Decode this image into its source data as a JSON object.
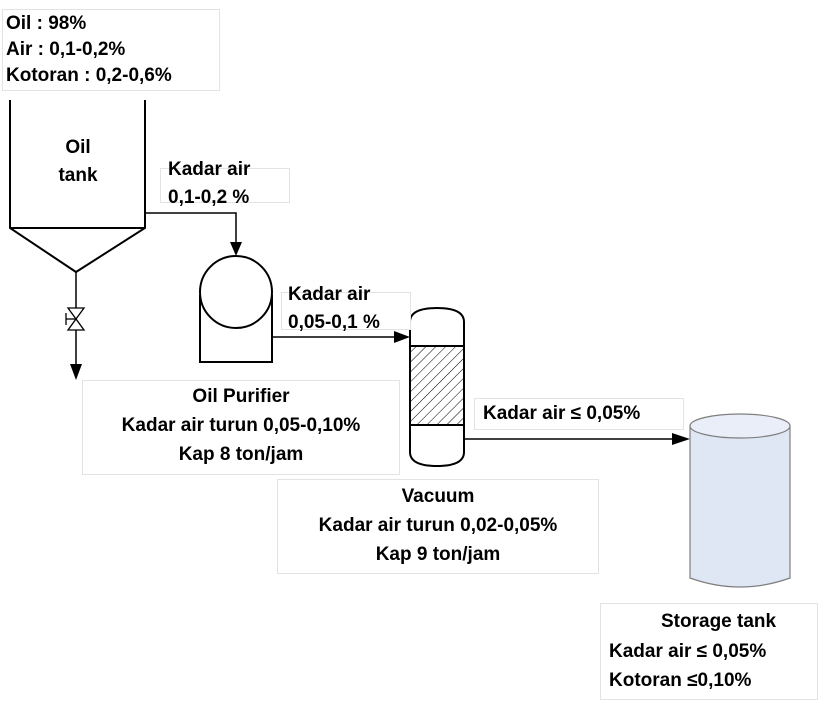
{
  "composition": {
    "oil_label": "Oil : 98%",
    "water_label": "Air : 0,1-0,2%",
    "dirt_label": "Kotoran : 0,2-0,6%"
  },
  "oil_tank": {
    "line1": "Oil",
    "line2": "tank"
  },
  "flow_to_purifier": {
    "line1": "Kadar air",
    "line2": "0,1-0,2 %"
  },
  "flow_to_vacuum": {
    "line1": "Kadar air",
    "line2": "0,05-0,1 %"
  },
  "flow_to_storage": {
    "label": "Kadar air ≤ 0,05%"
  },
  "oil_purifier": {
    "title": "Oil Purifier",
    "line2": "Kadar air turun 0,05-0,10%",
    "line3": "Kap 8 ton/jam"
  },
  "vacuum": {
    "title": "Vacuum",
    "line2": "Kadar air turun 0,02-0,05%",
    "line3": "Kap 9 ton/jam"
  },
  "storage_tank": {
    "title": "Storage tank",
    "line2": "Kadar air ≤ 0,05%",
    "line3": "Kotoran  ≤0,10%"
  },
  "colors": {
    "storage_fill": "#dfe7f5",
    "line": "#000000"
  }
}
